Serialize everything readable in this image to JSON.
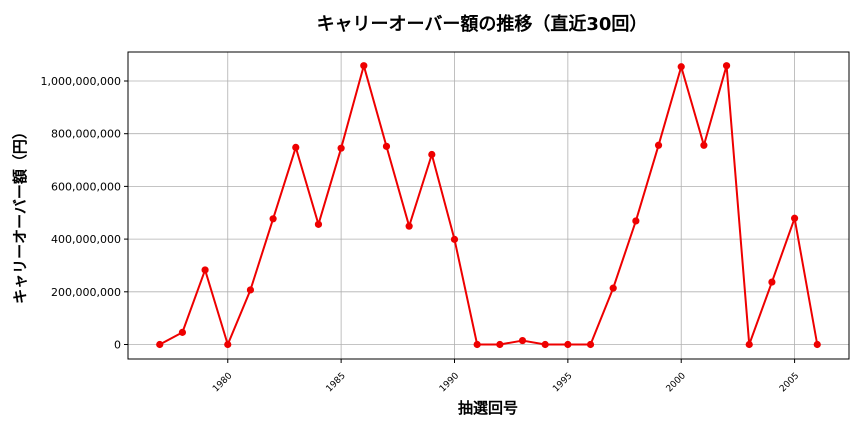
{
  "chart_data": {
    "type": "line",
    "title": "キャリーオーバー額の推移（直近30回）",
    "xlabel": "抽選回号",
    "ylabel": "キャリーオーバー額（円）",
    "xlim": [
      1975.6,
      2007.4
    ],
    "ylim": [
      -55000000,
      1110000000
    ],
    "xticks": [
      1980,
      1985,
      1990,
      1995,
      2000,
      2005
    ],
    "xtick_labels": [
      "1980",
      "1985",
      "1990",
      "1995",
      "2000",
      "2005"
    ],
    "yticks": [
      0,
      200000000,
      400000000,
      600000000,
      800000000,
      1000000000
    ],
    "ytick_labels": [
      "0",
      "200,000,000",
      "400,000,000",
      "600,000,000",
      "800,000,000",
      "1,000,000,000"
    ],
    "grid": true,
    "series": [
      {
        "color": "#ee0000",
        "x": [
          1977,
          1978,
          1979,
          1980,
          1981,
          1982,
          1983,
          1984,
          1985,
          1986,
          1987,
          1988,
          1989,
          1990,
          1991,
          1992,
          1993,
          1994,
          1995,
          1996,
          1997,
          1998,
          1999,
          2000,
          2001,
          2002,
          2003,
          2004,
          2005,
          2006
        ],
        "values": [
          0,
          46000000,
          283000000,
          0,
          207000000,
          477000000,
          748000000,
          456000000,
          745000000,
          1058000000,
          752000000,
          449000000,
          721000000,
          399000000,
          0,
          0,
          15000000,
          0,
          0,
          0,
          214000000,
          469000000,
          756000000,
          1054000000,
          756000000,
          1058000000,
          0,
          237000000,
          479000000,
          0
        ]
      }
    ]
  }
}
